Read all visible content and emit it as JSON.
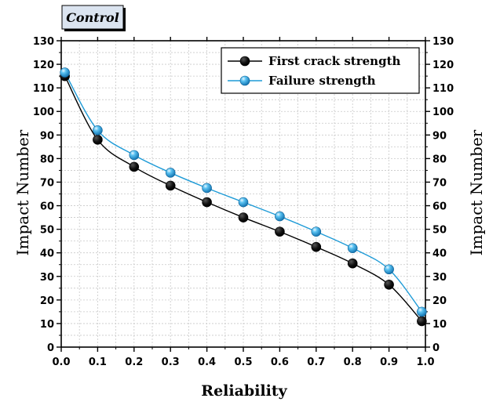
{
  "chart_data": {
    "type": "line",
    "tag": "Control",
    "xlabel": "Reliability",
    "ylabel": "Impact Number",
    "ylabel_right": "Impact Number",
    "xlim": [
      0,
      1
    ],
    "ylim": [
      0,
      130
    ],
    "x_ticks": [
      "0.0",
      "0.1",
      "0.2",
      "0.3",
      "0.4",
      "0.5",
      "0.6",
      "0.7",
      "0.8",
      "0.9",
      "1.0"
    ],
    "y_ticks": [
      "0",
      "10",
      "20",
      "30",
      "40",
      "50",
      "60",
      "70",
      "80",
      "90",
      "100",
      "110",
      "120",
      "130"
    ],
    "grid": true,
    "legend_position": "top-right",
    "series": [
      {
        "name": "First crack strength",
        "color": "#000000",
        "x": [
          0.01,
          0.1,
          0.2,
          0.3,
          0.4,
          0.5,
          0.6,
          0.7,
          0.8,
          0.9,
          0.99
        ],
        "y": [
          115,
          88,
          76.5,
          68.5,
          61.5,
          55,
          49,
          42.5,
          35.5,
          26.5,
          11
        ]
      },
      {
        "name": "Failure strength",
        "color": "#1e9bd7",
        "x": [
          0.01,
          0.1,
          0.2,
          0.3,
          0.4,
          0.5,
          0.6,
          0.7,
          0.8,
          0.9,
          0.99
        ],
        "y": [
          116.5,
          92,
          81.5,
          74,
          67.5,
          61.5,
          55.5,
          49,
          42,
          33,
          15
        ]
      }
    ]
  }
}
